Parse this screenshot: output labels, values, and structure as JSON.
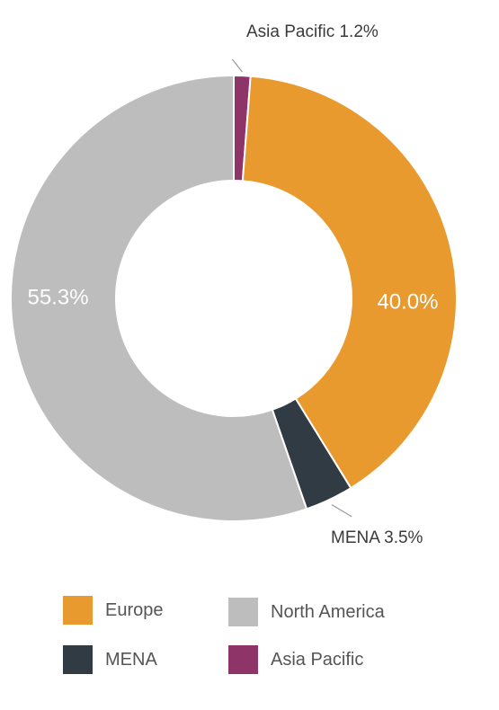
{
  "chart_data": {
    "type": "pie",
    "donut": true,
    "title": "",
    "categories": [
      "Asia Pacific",
      "Europe",
      "MENA",
      "North America"
    ],
    "values": [
      1.2,
      40.0,
      3.5,
      55.3
    ],
    "unit": "%",
    "slice_labels": [
      "Asia Pacific 1.2%",
      "40.0%",
      "MENA 3.5%",
      "55.3%"
    ],
    "colors": [
      "#8e3468",
      "#e89a2f",
      "#303b44",
      "#bcbdbc"
    ],
    "legend": {
      "placement": "bottom",
      "entries": [
        {
          "name": "Europe",
          "color": "#e89a2f"
        },
        {
          "name": "North America",
          "color": "#bcbdbc"
        },
        {
          "name": "MENA",
          "color": "#303b44"
        },
        {
          "name": "Asia Pacific",
          "color": "#8e3468"
        }
      ]
    }
  }
}
